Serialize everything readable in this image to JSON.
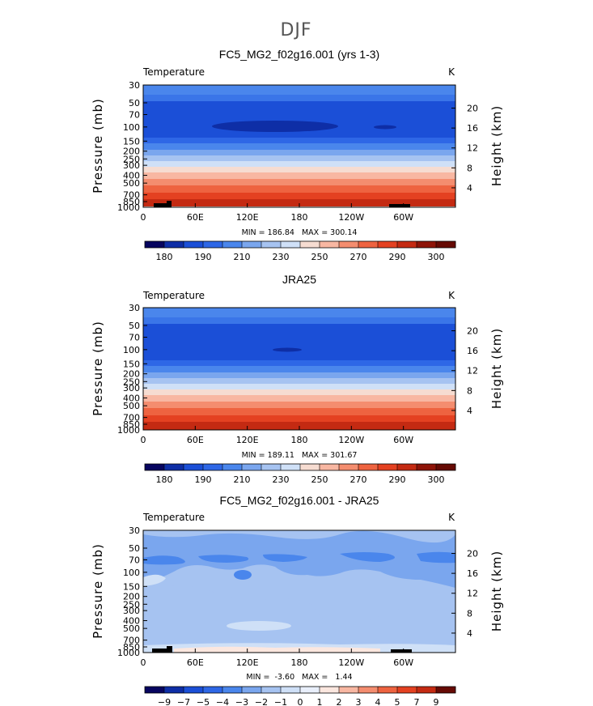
{
  "figure_title": "DJF",
  "panels": [
    {
      "title": "FC5_MG2_f02g16.001 (yrs 1-3)",
      "variable": "Temperature",
      "units": "K",
      "stats": "MIN = 186.84   MAX = 300.14",
      "colorbar_labels": [
        "180",
        "190",
        "210",
        "230",
        "250",
        "270",
        "290",
        "300"
      ]
    },
    {
      "title": "JRA25",
      "variable": "Temperature",
      "units": "K",
      "stats": "MIN = 189.11   MAX = 301.67",
      "colorbar_labels": [
        "180",
        "190",
        "210",
        "230",
        "250",
        "270",
        "290",
        "300"
      ]
    },
    {
      "title": "FC5_MG2_f02g16.001 - JRA25",
      "variable": "Temperature",
      "units": "K",
      "stats": "MIN =  -3.60   MAX =   1.44",
      "colorbar_labels": [
        "-9",
        "-7",
        "-5",
        "-4",
        "-3",
        "-2",
        "-1",
        "0",
        "1",
        "2",
        "3",
        "4",
        "5",
        "7",
        "9"
      ]
    }
  ],
  "axes": {
    "ylabel_left": "Pressure (mb)",
    "ylabel_right": "Height (km)",
    "pressure_ticks": [
      "30",
      "50",
      "70",
      "100",
      "150",
      "200",
      "250",
      "300",
      "400",
      "500",
      "700",
      "850",
      "1000"
    ],
    "height_ticks": [
      "20",
      "16",
      "12",
      "8",
      "4"
    ],
    "lon_ticks": [
      "0",
      "60E",
      "120E",
      "180",
      "120W",
      "60W"
    ]
  },
  "colors": {
    "temperature_scale": [
      "#07055f",
      "#0e2ea6",
      "#1b4fd7",
      "#2e67e6",
      "#4a86ec",
      "#7aa6ee",
      "#a6c3f1",
      "#cfe0f7",
      "#f6dcd1",
      "#f8b7a2",
      "#f48d6f",
      "#ee6340",
      "#e44121",
      "#c42a12",
      "#8e1408",
      "#660a04"
    ],
    "difference_scale": [
      "#07055f",
      "#0e2ea6",
      "#1b4fd7",
      "#2e67e6",
      "#4a86ec",
      "#7aa6ee",
      "#a6c3f1",
      "#cfe0f7",
      "#e9effb",
      "#fbe7df",
      "#f8b7a2",
      "#f48d6f",
      "#ee6340",
      "#e44121",
      "#c42a12",
      "#660a04"
    ]
  },
  "chart_data": [
    {
      "type": "heatmap",
      "title": "FC5_MG2_f02g16.001 (yrs 1-3)",
      "x": "longitude 0 to 360",
      "y": "pressure 30 to 1000 mb (log)",
      "xticks": [
        "0",
        "60E",
        "120E",
        "180",
        "120W",
        "60W"
      ],
      "yticks": [
        30,
        50,
        70,
        100,
        150,
        200,
        250,
        300,
        400,
        500,
        700,
        850,
        1000
      ],
      "contour_levels": [
        180,
        185,
        190,
        200,
        210,
        220,
        230,
        240,
        250,
        260,
        270,
        280,
        290,
        295,
        300
      ],
      "min": 186.84,
      "max": 300.14,
      "units": "K"
    },
    {
      "type": "heatmap",
      "title": "JRA25",
      "x": "longitude 0 to 360",
      "y": "pressure 30 to 1000 mb (log)",
      "xticks": [
        "0",
        "60E",
        "120E",
        "180",
        "120W",
        "60W"
      ],
      "yticks": [
        30,
        50,
        70,
        100,
        150,
        200,
        250,
        300,
        400,
        500,
        700,
        850,
        1000
      ],
      "contour_levels": [
        180,
        185,
        190,
        200,
        210,
        220,
        230,
        240,
        250,
        260,
        270,
        280,
        290,
        295,
        300
      ],
      "min": 189.11,
      "max": 301.67,
      "units": "K"
    },
    {
      "type": "heatmap",
      "title": "FC5_MG2_f02g16.001 - JRA25",
      "x": "longitude 0 to 360",
      "y": "pressure 30 to 1000 mb (log)",
      "xticks": [
        "0",
        "60E",
        "120E",
        "180",
        "120W",
        "60W"
      ],
      "yticks": [
        30,
        50,
        70,
        100,
        150,
        200,
        250,
        300,
        400,
        500,
        700,
        850,
        1000
      ],
      "contour_levels": [
        -9,
        -7,
        -5,
        -4,
        -3,
        -2,
        -1,
        0,
        1,
        2,
        3,
        4,
        5,
        7,
        9
      ],
      "min": -3.6,
      "max": 1.44,
      "units": "K"
    }
  ]
}
